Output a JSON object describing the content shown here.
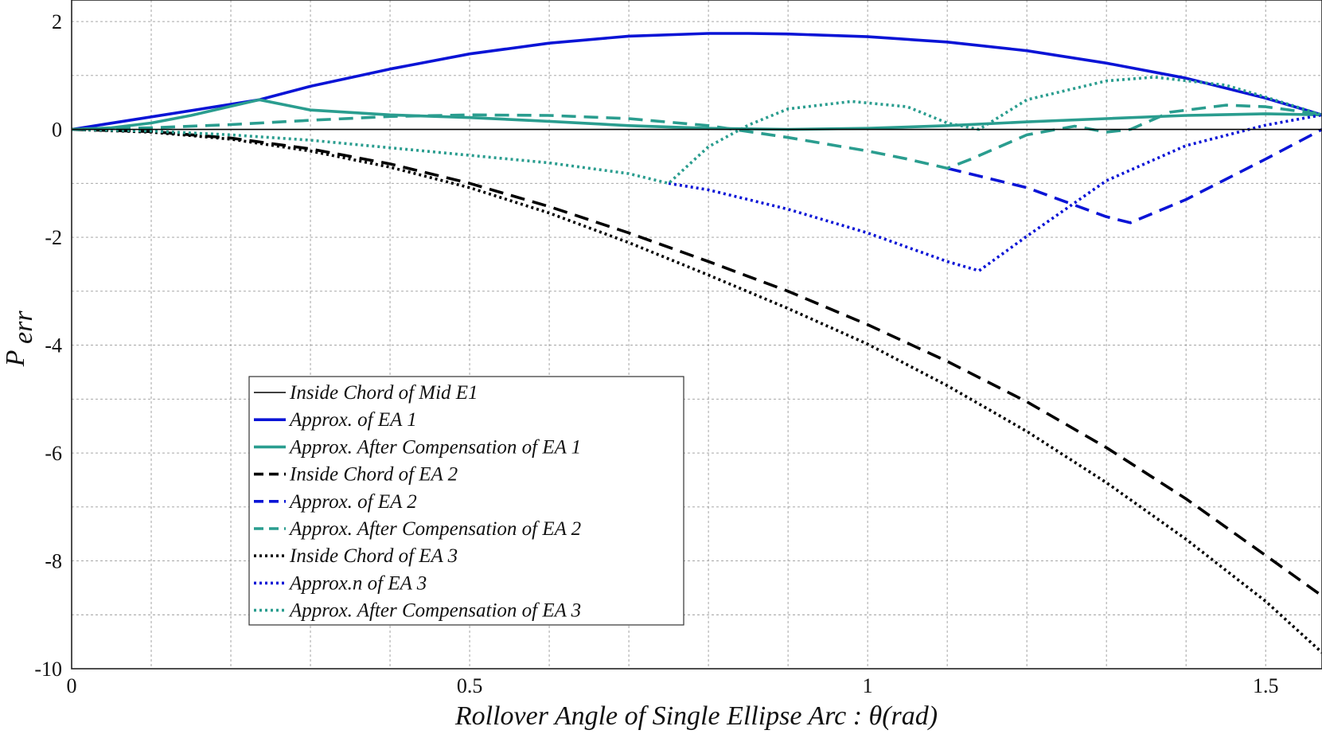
{
  "chart_data": {
    "type": "line",
    "title": "",
    "xlabel": "Rollover Angle of Single Ellipse Arc : θ(rad)",
    "ylabel": "P_err",
    "ylabel_main": "P",
    "ylabel_sub": "err",
    "xlim": [
      0,
      1.5708
    ],
    "ylim": [
      -10,
      2.4
    ],
    "xticks": [
      0,
      0.5,
      1,
      1.5
    ],
    "xtick_labels": [
      "0",
      "0.5",
      "1",
      "1.5"
    ],
    "yticks": [
      2,
      0,
      -2,
      -4,
      -6,
      -8,
      -10
    ],
    "ytick_labels": [
      "2",
      "0",
      "-2",
      "-4",
      "-6",
      "-8",
      "-10"
    ],
    "grid": true,
    "legend_position": "lower-left",
    "series": [
      {
        "name": "Inside Chord of Mid E1",
        "color": "#000000",
        "style": "solid",
        "weight": "thin",
        "x": [
          0,
          1.5708
        ],
        "y": [
          0,
          0
        ]
      },
      {
        "name": "Approx. of EA 1",
        "color": "#0a14d6",
        "style": "solid",
        "weight": "thick",
        "x": [
          0,
          0.236,
          0.3,
          0.4,
          0.5,
          0.6,
          0.7,
          0.8,
          0.85,
          0.9,
          1.0,
          1.1,
          1.2,
          1.3,
          1.4,
          1.5,
          1.5708
        ],
        "y": [
          0,
          0.55,
          0.8,
          1.12,
          1.4,
          1.6,
          1.73,
          1.78,
          1.78,
          1.77,
          1.72,
          1.62,
          1.46,
          1.23,
          0.95,
          0.58,
          0.27
        ]
      },
      {
        "name": "Approx. After Compensation of EA 1",
        "color": "#2a9d8f",
        "style": "solid",
        "weight": "thick",
        "x": [
          0,
          0.05,
          0.1,
          0.15,
          0.2,
          0.236,
          0.3,
          0.4,
          0.5,
          0.6,
          0.7,
          0.8,
          0.9,
          1.0,
          1.1,
          1.2,
          1.3,
          1.4,
          1.5,
          1.5708
        ],
        "y": [
          0,
          0.03,
          0.12,
          0.26,
          0.43,
          0.55,
          0.36,
          0.27,
          0.22,
          0.15,
          0.07,
          0.02,
          0.0,
          0.02,
          0.07,
          0.14,
          0.2,
          0.26,
          0.29,
          0.27
        ]
      },
      {
        "name": "Inside Chord of EA 2",
        "color": "#000000",
        "style": "dashed",
        "weight": "thick",
        "x": [
          0,
          0.1,
          0.2,
          0.3,
          0.4,
          0.5,
          0.6,
          0.7,
          0.8,
          0.9,
          1.0,
          1.1,
          1.2,
          1.3,
          1.4,
          1.5,
          1.5708
        ],
        "y": [
          0,
          -0.04,
          -0.16,
          -0.36,
          -0.64,
          -1.0,
          -1.43,
          -1.92,
          -2.45,
          -3.0,
          -3.62,
          -4.3,
          -5.05,
          -5.9,
          -6.85,
          -7.9,
          -8.65
        ]
      },
      {
        "name": "Approx. of EA 2",
        "color": "#0a14d6",
        "style": "dashed",
        "weight": "thick",
        "x": [
          1.1,
          1.2,
          1.3,
          1.33,
          1.4,
          1.5,
          1.5708
        ],
        "y": [
          -0.72,
          -1.08,
          -1.62,
          -1.73,
          -1.3,
          -0.55,
          0.0
        ]
      },
      {
        "name": "Approx. After Compensation of EA 2",
        "color": "#2a9d8f",
        "style": "dashed",
        "weight": "thick",
        "x": [
          0,
          0.1,
          0.2,
          0.3,
          0.4,
          0.5,
          0.6,
          0.7,
          0.8,
          0.9,
          1.0,
          1.05,
          1.1,
          1.13,
          1.2,
          1.26,
          1.3,
          1.33,
          1.38,
          1.45,
          1.5,
          1.5708
        ],
        "y": [
          0,
          0.03,
          0.09,
          0.17,
          0.24,
          0.27,
          0.26,
          0.2,
          0.07,
          -0.15,
          -0.4,
          -0.55,
          -0.72,
          -0.55,
          -0.1,
          0.06,
          -0.05,
          0.0,
          0.32,
          0.45,
          0.42,
          0.28
        ]
      },
      {
        "name": "Inside Chord of EA 3",
        "color": "#000000",
        "style": "dotted",
        "weight": "thick",
        "x": [
          0,
          0.1,
          0.2,
          0.3,
          0.4,
          0.5,
          0.6,
          0.7,
          0.8,
          0.9,
          1.0,
          1.1,
          1.2,
          1.3,
          1.4,
          1.5,
          1.5708
        ],
        "y": [
          0,
          -0.05,
          -0.18,
          -0.4,
          -0.7,
          -1.08,
          -1.55,
          -2.1,
          -2.7,
          -3.32,
          -3.98,
          -4.75,
          -5.6,
          -6.55,
          -7.6,
          -8.75,
          -9.7
        ]
      },
      {
        "name": "Approx.n of EA 3",
        "color": "#0a14d6",
        "style": "dotted",
        "weight": "thick",
        "x": [
          0.75,
          0.8,
          0.9,
          1.0,
          1.1,
          1.14,
          1.2,
          1.3,
          1.4,
          1.5,
          1.5708
        ],
        "y": [
          -1.0,
          -1.12,
          -1.48,
          -1.92,
          -2.45,
          -2.62,
          -1.98,
          -0.95,
          -0.3,
          0.08,
          0.27
        ]
      },
      {
        "name": "Approx. After Compensation of EA 3",
        "color": "#2a9d8f",
        "style": "dotted",
        "weight": "thick",
        "x": [
          0,
          0.1,
          0.2,
          0.3,
          0.4,
          0.5,
          0.6,
          0.7,
          0.75,
          0.8,
          0.85,
          0.9,
          0.98,
          1.05,
          1.1,
          1.14,
          1.2,
          1.3,
          1.36,
          1.45,
          1.5,
          1.5708
        ],
        "y": [
          0,
          -0.03,
          -0.1,
          -0.2,
          -0.34,
          -0.48,
          -0.62,
          -0.82,
          -1.0,
          -0.32,
          0.08,
          0.38,
          0.52,
          0.42,
          0.12,
          0.0,
          0.55,
          0.9,
          0.97,
          0.82,
          0.6,
          0.27
        ]
      }
    ],
    "legend_entries": [
      "Inside Chord of Mid E1",
      "Approx. of EA 1",
      "Approx. After Compensation of EA 1",
      "Inside Chord of EA 2",
      "Approx. of EA 2",
      "Approx. After Compensation of EA 2",
      "Inside Chord of EA 3",
      "Approx.n of EA 3",
      "Approx. After Compensation of EA 3"
    ]
  }
}
